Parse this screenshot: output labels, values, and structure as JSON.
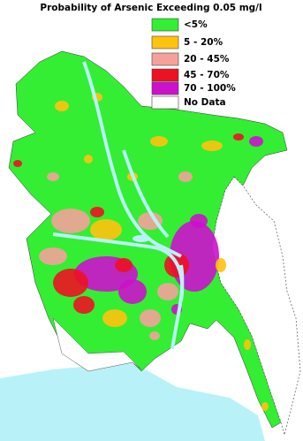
{
  "title": "Probability of Arsenic Exceeding 0.05 mg/l",
  "legend": [
    {
      "label": "<5%",
      "color": "#33ee33"
    },
    {
      "label": "5 - 20%",
      "color": "#ffc20e"
    },
    {
      "label": "20 - 45%",
      "color": "#f4a19a"
    },
    {
      "label": "45 - 70%",
      "color": "#ee1122"
    },
    {
      "label": "70 - 100%",
      "color": "#cc11cc"
    },
    {
      "label": "No Data",
      "color": "#ffffff"
    }
  ],
  "water_color": "#b8f2f8"
}
